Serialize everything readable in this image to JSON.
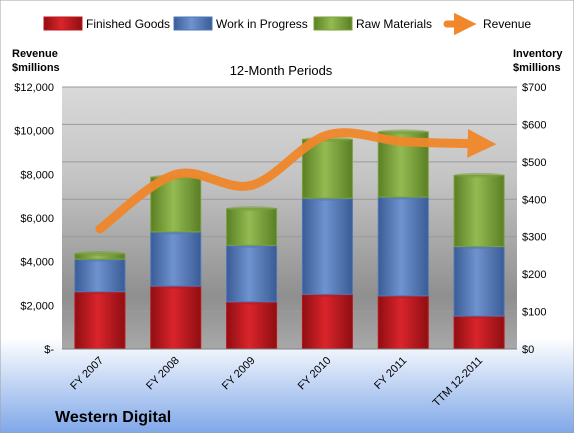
{
  "chart_data": {
    "type": "bar",
    "stacked": true,
    "title": "12-Month Periods",
    "company": "Western Digital",
    "categories": [
      "FY 2007",
      "FY 2008",
      "FY 2009",
      "FY 2010",
      "FY 2011",
      "TTM 12-2011"
    ],
    "series": [
      {
        "name": "Finished Goods",
        "axis": "right",
        "color": "#c0151b",
        "values": [
          153,
          168,
          126,
          146,
          142,
          88
        ]
      },
      {
        "name": "Work in Progress",
        "axis": "right",
        "color": "#4f76b8",
        "values": [
          87,
          145,
          151,
          257,
          264,
          186
        ]
      },
      {
        "name": "Raw Materials",
        "axis": "right",
        "color": "#7aa13a",
        "values": [
          15,
          146,
          98,
          157,
          174,
          190
        ]
      },
      {
        "name": "Revenue",
        "axis": "left",
        "type": "line",
        "color": "#f0872a",
        "values": [
          5500,
          8000,
          7500,
          9800,
          9500,
          9400
        ]
      }
    ],
    "left_axis": {
      "label_line1": "Revenue",
      "label_line2": "$millions",
      "range": [
        0,
        12000
      ],
      "ticks": [
        "$-",
        "$2,000",
        "$4,000",
        "$6,000",
        "$8,000",
        "$10,000",
        "$12,000"
      ]
    },
    "right_axis": {
      "label_line1": "Inventory",
      "label_line2": "$millions",
      "range": [
        0,
        700
      ],
      "ticks": [
        "$0",
        "$100",
        "$200",
        "$300",
        "$400",
        "$500",
        "$600",
        "$700"
      ]
    },
    "grid": true,
    "legend_position": "top"
  }
}
